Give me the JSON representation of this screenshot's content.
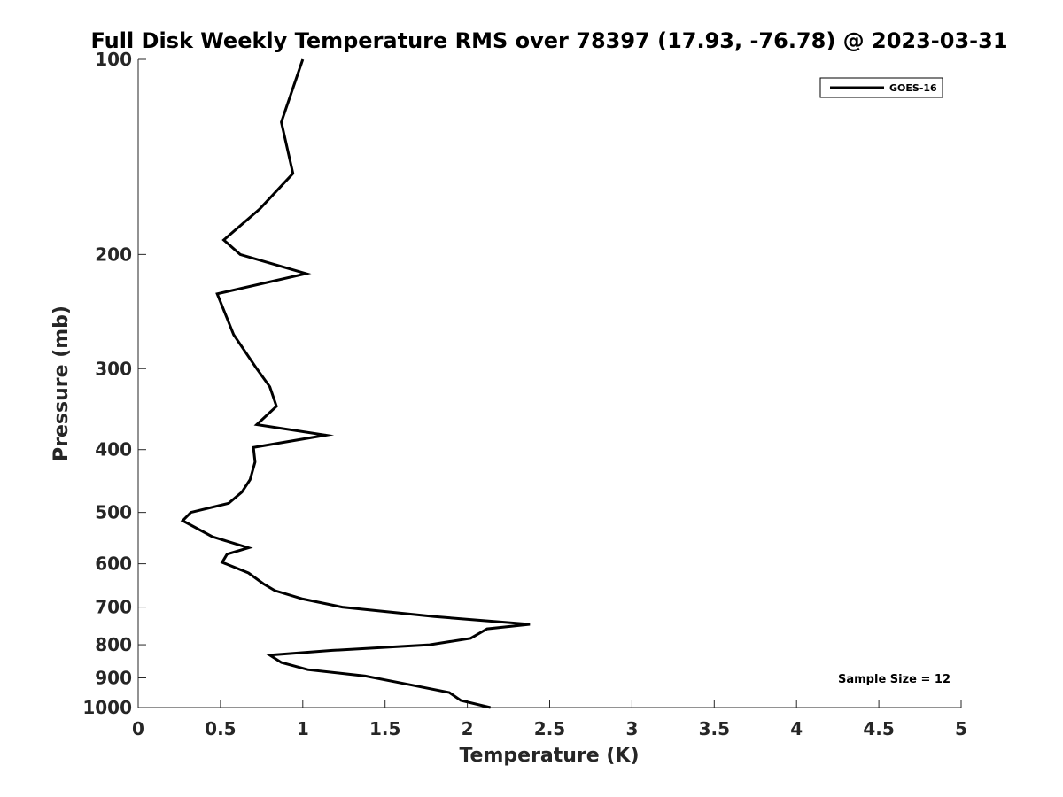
{
  "chart_data": {
    "type": "line",
    "title": "Full Disk Weekly Temperature RMS over 78397 (17.93, -76.78) @ 2023-03-31",
    "xlabel": "Temperature (K)",
    "ylabel": "Pressure (mb)",
    "xlim": [
      0,
      5
    ],
    "ylim": [
      100,
      1000
    ],
    "yscale": "log",
    "y_reversed": true,
    "x_ticks": [
      0,
      0.5,
      1,
      1.5,
      2,
      2.5,
      3,
      3.5,
      4,
      4.5,
      5
    ],
    "y_ticks": [
      100,
      200,
      300,
      400,
      500,
      600,
      700,
      800,
      900,
      1000
    ],
    "legend_position": "top-right",
    "annotation": "Sample Size = 12",
    "series": [
      {
        "name": "GOES-16",
        "color": "#000000",
        "points": [
          [
            1.0,
            100
          ],
          [
            0.87,
            125
          ],
          [
            0.94,
            150
          ],
          [
            0.74,
            170
          ],
          [
            0.52,
            190
          ],
          [
            0.62,
            200
          ],
          [
            1.02,
            214
          ],
          [
            0.48,
            230
          ],
          [
            0.58,
            266
          ],
          [
            0.72,
            300
          ],
          [
            0.8,
            320
          ],
          [
            0.84,
            343
          ],
          [
            0.72,
            366
          ],
          [
            1.14,
            380
          ],
          [
            0.7,
            397
          ],
          [
            0.71,
            418
          ],
          [
            0.68,
            445
          ],
          [
            0.63,
            465
          ],
          [
            0.55,
            484
          ],
          [
            0.32,
            500
          ],
          [
            0.27,
            515
          ],
          [
            0.45,
            545
          ],
          [
            0.67,
            567
          ],
          [
            0.54,
            580
          ],
          [
            0.51,
            597
          ],
          [
            0.67,
            620
          ],
          [
            0.76,
            644
          ],
          [
            0.83,
            660
          ],
          [
            1.0,
            680
          ],
          [
            1.24,
            700
          ],
          [
            1.8,
            724
          ],
          [
            2.38,
            744
          ],
          [
            2.12,
            756
          ],
          [
            2.02,
            782
          ],
          [
            1.77,
            800
          ],
          [
            1.18,
            816
          ],
          [
            0.8,
            830
          ],
          [
            0.87,
            852
          ],
          [
            1.03,
            874
          ],
          [
            1.38,
            894
          ],
          [
            1.65,
            922
          ],
          [
            1.89,
            948
          ],
          [
            1.96,
            975
          ],
          [
            2.14,
            1000
          ]
        ]
      }
    ]
  }
}
